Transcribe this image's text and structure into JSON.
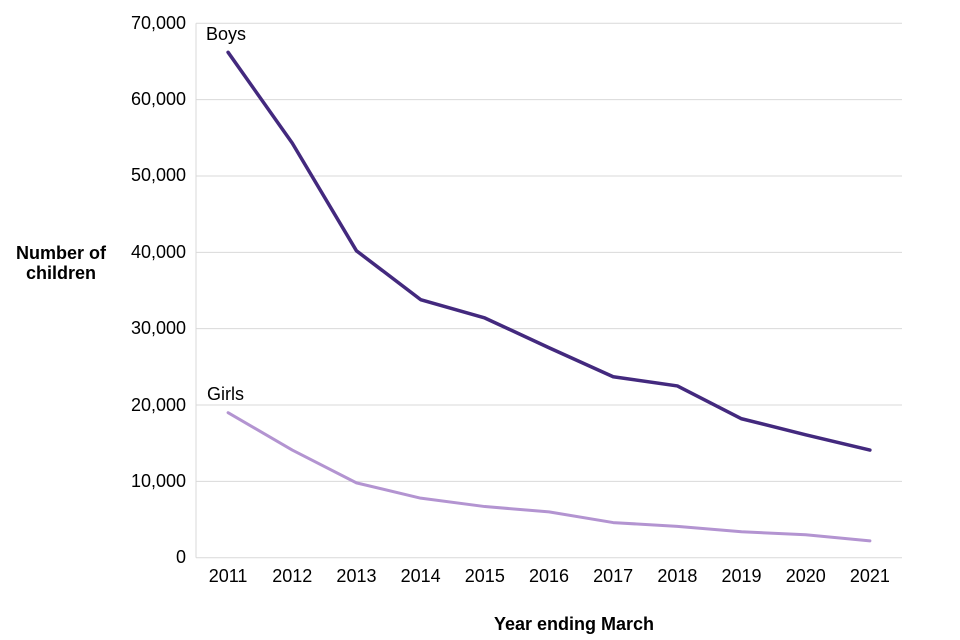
{
  "chart_data": {
    "type": "line",
    "title": "",
    "xlabel": "Year ending March",
    "ylabel": "Number of children",
    "x": [
      2011,
      2012,
      2013,
      2014,
      2015,
      2016,
      2017,
      2018,
      2019,
      2020,
      2021
    ],
    "series": [
      {
        "name": "Boys",
        "color": "#43297e",
        "values": [
          66200,
          54300,
          40200,
          33800,
          31400,
          27500,
          23700,
          22500,
          18200,
          16100,
          14100
        ]
      },
      {
        "name": "Girls",
        "color": "#b394d1",
        "values": [
          19000,
          14100,
          9800,
          7800,
          6700,
          6000,
          4600,
          4100,
          3400,
          3000,
          2200
        ]
      }
    ],
    "ylim": [
      0,
      70000
    ],
    "y_tick_step": 10000,
    "y_tick_labels": [
      "70,000",
      "60,000",
      "50,000",
      "40,000",
      "30,000",
      "20,000",
      "10,000",
      "0"
    ],
    "grid": "horizontal",
    "gridline_color": "#d9d9d9",
    "axis_line_color": "#d9d9d9",
    "legend_position": "inline-labels",
    "text_color": "#000000"
  }
}
